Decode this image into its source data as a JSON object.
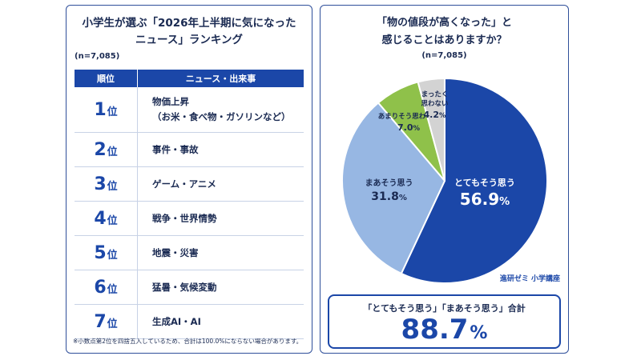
{
  "left": {
    "title_line1": "小学生が選ぶ「2026年上半期に気になった",
    "title_line2": "ニュース」ランキング",
    "n_label": "(n=7,085)",
    "col_rank": "順位",
    "col_news": "ニュース・出来事",
    "rank_suffix": "位",
    "rows": [
      {
        "rank": "1",
        "lines": [
          "物価上昇",
          "（お米・食べ物・ガソリンなど）"
        ]
      },
      {
        "rank": "2",
        "lines": [
          "事件・事故"
        ]
      },
      {
        "rank": "3",
        "lines": [
          "ゲーム・アニメ"
        ]
      },
      {
        "rank": "4",
        "lines": [
          "戦争・世界情勢"
        ]
      },
      {
        "rank": "5",
        "lines": [
          "地震・災害"
        ]
      },
      {
        "rank": "6",
        "lines": [
          "猛暑・気候変動"
        ]
      },
      {
        "rank": "7",
        "lines": [
          "生成AI・AI"
        ]
      }
    ],
    "footnote": "※小数点第2位を四捨五入しているため、合計は100.0%にならない場合があります。"
  },
  "right": {
    "title_line1": "「物の値段が高くなった」と",
    "title_line2": "感じることはありますか？",
    "n_label": "(n=7,085)",
    "credit": "進研ゼミ 小学講座",
    "sum_label": "「とてもそう思う」「まあそう思う」合計",
    "sum_value": "88.7",
    "sum_unit": "%"
  },
  "chart_data": [
    {
      "type": "table",
      "title": "小学生が選ぶ「2026年上半期に気になったニュース」ランキング",
      "columns": [
        "順位",
        "ニュース・出来事"
      ],
      "rows": [
        [
          "1位",
          "物価上昇（お米・食べ物・ガソリンなど）"
        ],
        [
          "2位",
          "事件・事故"
        ],
        [
          "3位",
          "ゲーム・アニメ"
        ],
        [
          "4位",
          "戦争・世界情勢"
        ],
        [
          "5位",
          "地震・災害"
        ],
        [
          "6位",
          "猛暑・気候変動"
        ],
        [
          "7位",
          "生成AI・AI"
        ]
      ]
    },
    {
      "type": "pie",
      "title": "「物の値段が高くなった」と感じることはありますか？",
      "unit": "%",
      "slices": [
        {
          "label_lines": [
            "とてもそう思う"
          ],
          "value": 56.9,
          "value_text": "56.9",
          "color": "#1b47a8"
        },
        {
          "label_lines": [
            "まあそう思う"
          ],
          "value": 31.8,
          "value_text": "31.8",
          "color": "#97b7e3"
        },
        {
          "label_lines": [
            "あまりそう思わない"
          ],
          "value": 7.0,
          "value_text": "7.0",
          "color": "#8fc14a"
        },
        {
          "label_lines": [
            "まったく",
            "思わない"
          ],
          "value": 4.2,
          "value_text": "4.2",
          "color": "#d3d3d3"
        }
      ]
    }
  ]
}
